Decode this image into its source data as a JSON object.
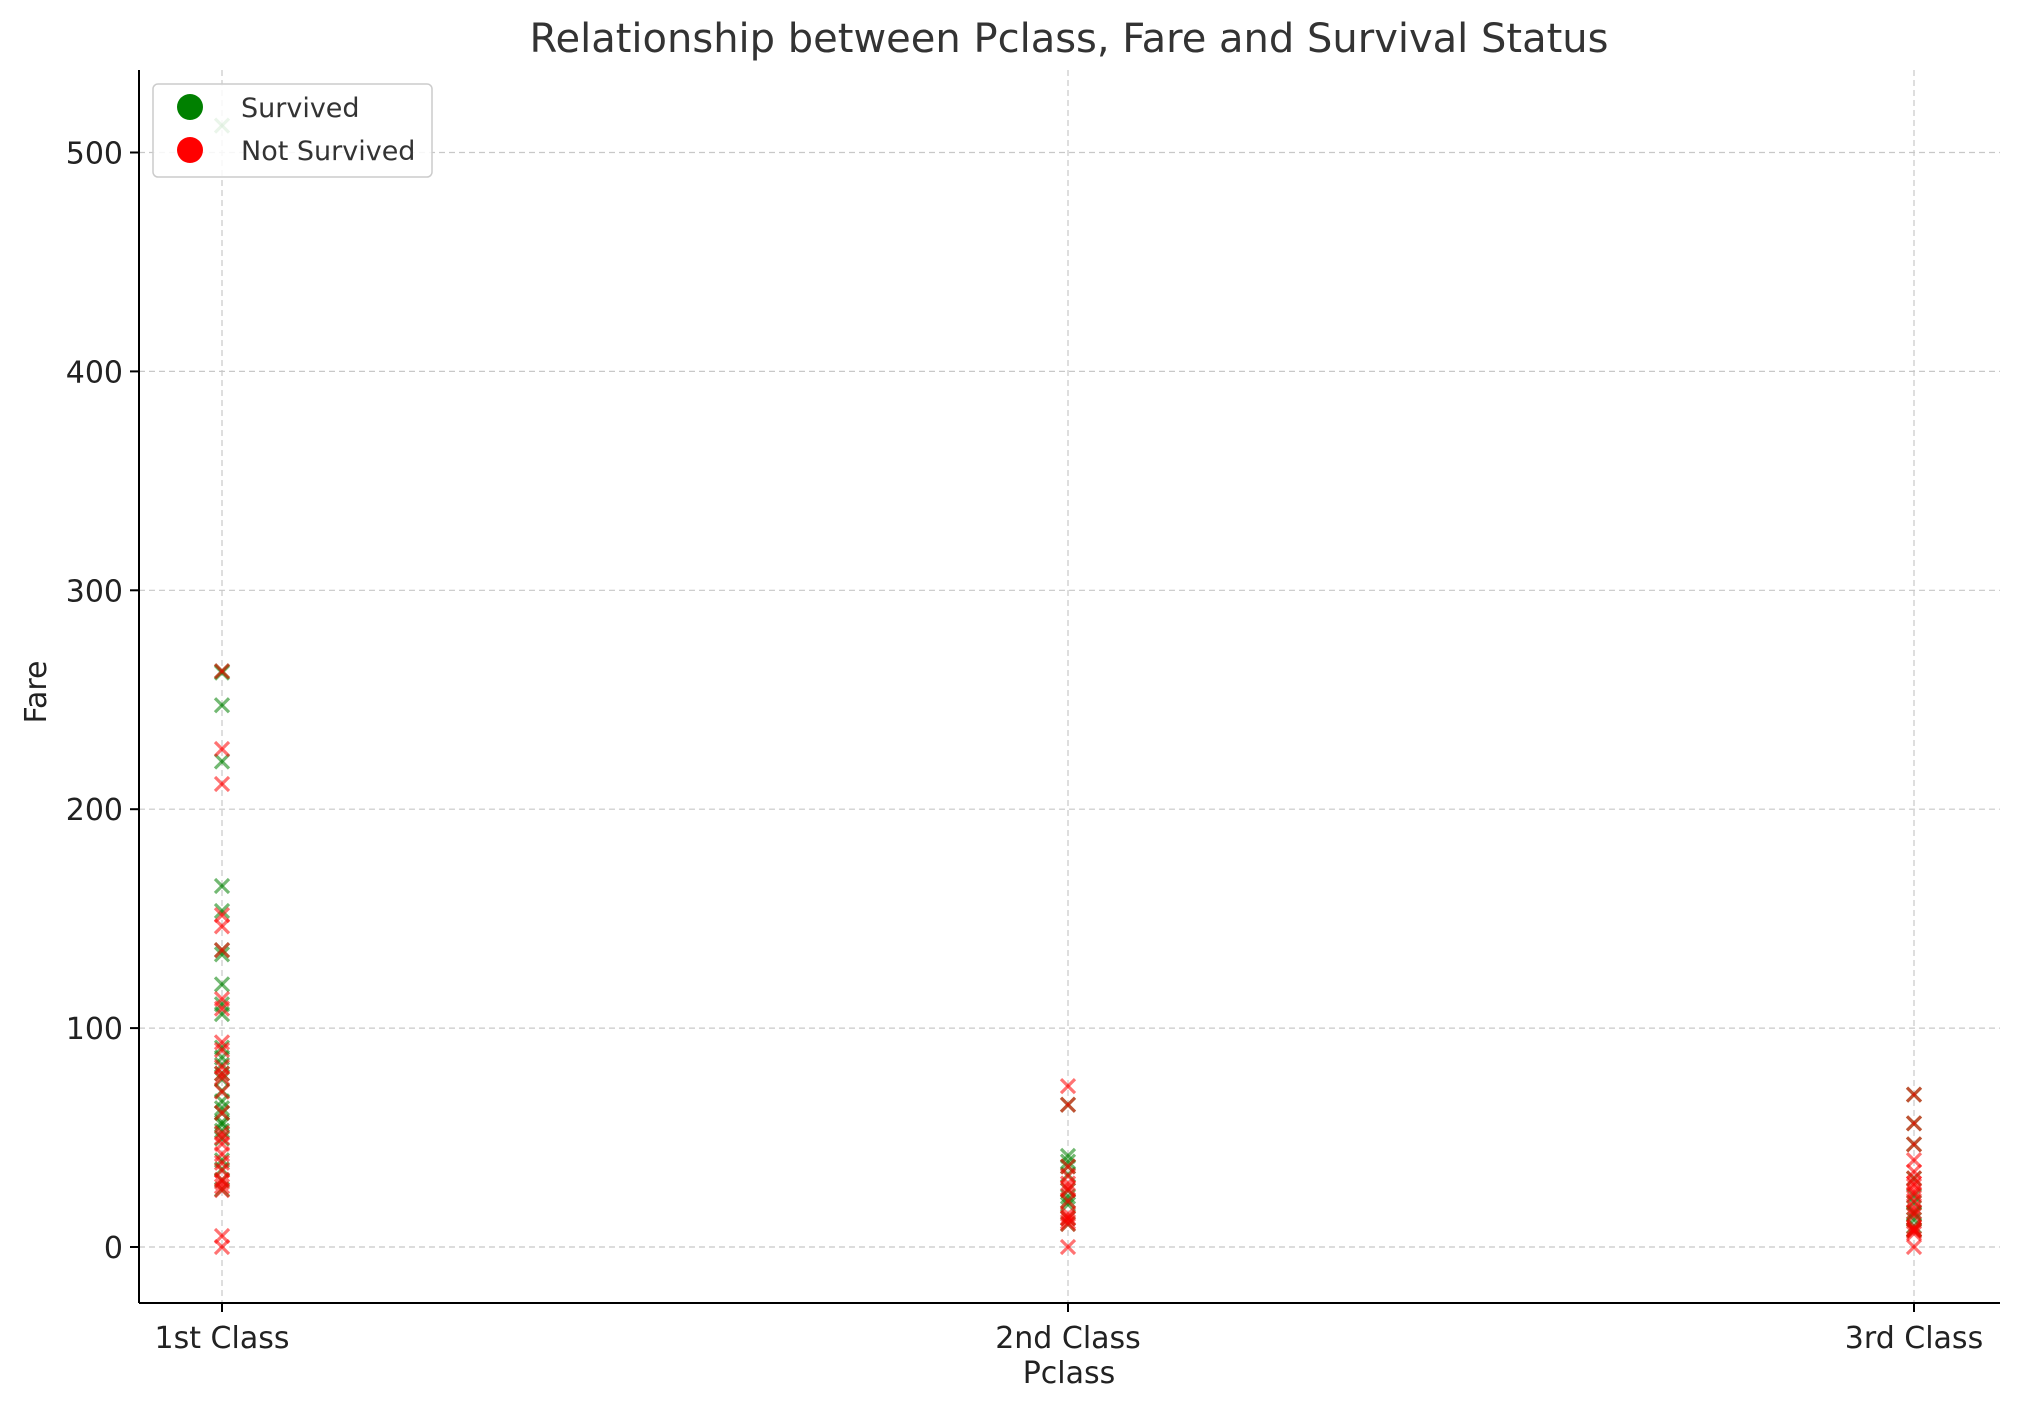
{
  "chart_data": {
    "type": "scatter",
    "title": "Relationship between Pclass, Fare and Survival Status",
    "xlabel": "Pclass",
    "ylabel": "Fare",
    "categories": [
      "1st Class",
      "2nd Class",
      "3rd Class"
    ],
    "ylim": [
      -25,
      540
    ],
    "yticks": [
      0,
      100,
      200,
      300,
      400,
      500
    ],
    "grid": true,
    "legend_position": "top-left",
    "marker": "x",
    "colors": {
      "Survived": "#008000",
      "Not Survived": "#ff0000"
    },
    "series": [
      {
        "name": "Survived",
        "points": [
          {
            "x": "1st Class",
            "y": 512.3
          },
          {
            "x": "1st Class",
            "y": 263.0
          },
          {
            "x": "1st Class",
            "y": 262.4
          },
          {
            "x": "1st Class",
            "y": 247.5
          },
          {
            "x": "1st Class",
            "y": 221.8
          },
          {
            "x": "1st Class",
            "y": 164.9
          },
          {
            "x": "1st Class",
            "y": 153.5
          },
          {
            "x": "1st Class",
            "y": 135.6
          },
          {
            "x": "1st Class",
            "y": 133.7
          },
          {
            "x": "1st Class",
            "y": 120.0
          },
          {
            "x": "1st Class",
            "y": 110.9
          },
          {
            "x": "1st Class",
            "y": 106.4
          },
          {
            "x": "1st Class",
            "y": 91.1
          },
          {
            "x": "1st Class",
            "y": 86.5
          },
          {
            "x": "1st Class",
            "y": 83.2
          },
          {
            "x": "1st Class",
            "y": 79.2
          },
          {
            "x": "1st Class",
            "y": 76.7
          },
          {
            "x": "1st Class",
            "y": 71.3
          },
          {
            "x": "1st Class",
            "y": 66.6
          },
          {
            "x": "1st Class",
            "y": 63.4
          },
          {
            "x": "1st Class",
            "y": 61.2
          },
          {
            "x": "1st Class",
            "y": 57.0
          },
          {
            "x": "1st Class",
            "y": 55.9
          },
          {
            "x": "1st Class",
            "y": 53.1
          },
          {
            "x": "1st Class",
            "y": 49.5
          },
          {
            "x": "1st Class",
            "y": 39.6
          },
          {
            "x": "1st Class",
            "y": 35.5
          },
          {
            "x": "1st Class",
            "y": 30.5
          },
          {
            "x": "1st Class",
            "y": 26.3
          },
          {
            "x": "2nd Class",
            "y": 65.0
          },
          {
            "x": "2nd Class",
            "y": 41.6
          },
          {
            "x": "2nd Class",
            "y": 39.0
          },
          {
            "x": "2nd Class",
            "y": 36.8
          },
          {
            "x": "2nd Class",
            "y": 33.0
          },
          {
            "x": "2nd Class",
            "y": 26.0
          },
          {
            "x": "2nd Class",
            "y": 23.0
          },
          {
            "x": "2nd Class",
            "y": 21.0
          },
          {
            "x": "2nd Class",
            "y": 19.5
          },
          {
            "x": "2nd Class",
            "y": 13.0
          },
          {
            "x": "2nd Class",
            "y": 10.5
          },
          {
            "x": "3rd Class",
            "y": 69.6
          },
          {
            "x": "3rd Class",
            "y": 56.5
          },
          {
            "x": "3rd Class",
            "y": 46.9
          },
          {
            "x": "3rd Class",
            "y": 31.3
          },
          {
            "x": "3rd Class",
            "y": 23.3
          },
          {
            "x": "3rd Class",
            "y": 20.2
          },
          {
            "x": "3rd Class",
            "y": 15.9
          },
          {
            "x": "3rd Class",
            "y": 15.2
          },
          {
            "x": "3rd Class",
            "y": 12.5
          },
          {
            "x": "3rd Class",
            "y": 9.5
          },
          {
            "x": "3rd Class",
            "y": 7.9
          },
          {
            "x": "3rd Class",
            "y": 7.7
          }
        ]
      },
      {
        "name": "Not Survived",
        "points": [
          {
            "x": "1st Class",
            "y": 263.0
          },
          {
            "x": "1st Class",
            "y": 227.5
          },
          {
            "x": "1st Class",
            "y": 211.5
          },
          {
            "x": "1st Class",
            "y": 151.6
          },
          {
            "x": "1st Class",
            "y": 146.5
          },
          {
            "x": "1st Class",
            "y": 135.6
          },
          {
            "x": "1st Class",
            "y": 113.3
          },
          {
            "x": "1st Class",
            "y": 108.9
          },
          {
            "x": "1st Class",
            "y": 93.5
          },
          {
            "x": "1st Class",
            "y": 90.0
          },
          {
            "x": "1st Class",
            "y": 82.2
          },
          {
            "x": "1st Class",
            "y": 79.2
          },
          {
            "x": "1st Class",
            "y": 77.3
          },
          {
            "x": "1st Class",
            "y": 71.0
          },
          {
            "x": "1st Class",
            "y": 61.3
          },
          {
            "x": "1st Class",
            "y": 52.0
          },
          {
            "x": "1st Class",
            "y": 50.0
          },
          {
            "x": "1st Class",
            "y": 47.1
          },
          {
            "x": "1st Class",
            "y": 42.4
          },
          {
            "x": "1st Class",
            "y": 38.5
          },
          {
            "x": "1st Class",
            "y": 35.0
          },
          {
            "x": "1st Class",
            "y": 30.7
          },
          {
            "x": "1st Class",
            "y": 29.7
          },
          {
            "x": "1st Class",
            "y": 27.7
          },
          {
            "x": "1st Class",
            "y": 26.0
          },
          {
            "x": "1st Class",
            "y": 5.0
          },
          {
            "x": "1st Class",
            "y": 0.0
          },
          {
            "x": "2nd Class",
            "y": 73.5
          },
          {
            "x": "2nd Class",
            "y": 65.0
          },
          {
            "x": "2nd Class",
            "y": 36.8
          },
          {
            "x": "2nd Class",
            "y": 32.5
          },
          {
            "x": "2nd Class",
            "y": 29.0
          },
          {
            "x": "2nd Class",
            "y": 27.0
          },
          {
            "x": "2nd Class",
            "y": 26.0
          },
          {
            "x": "2nd Class",
            "y": 21.0
          },
          {
            "x": "2nd Class",
            "y": 15.0
          },
          {
            "x": "2nd Class",
            "y": 13.5
          },
          {
            "x": "2nd Class",
            "y": 13.0
          },
          {
            "x": "2nd Class",
            "y": 11.5
          },
          {
            "x": "2nd Class",
            "y": 10.5
          },
          {
            "x": "2nd Class",
            "y": 0.0
          },
          {
            "x": "3rd Class",
            "y": 69.6
          },
          {
            "x": "3rd Class",
            "y": 56.5
          },
          {
            "x": "3rd Class",
            "y": 46.9
          },
          {
            "x": "3rd Class",
            "y": 39.7
          },
          {
            "x": "3rd Class",
            "y": 34.4
          },
          {
            "x": "3rd Class",
            "y": 31.4
          },
          {
            "x": "3rd Class",
            "y": 29.1
          },
          {
            "x": "3rd Class",
            "y": 27.9
          },
          {
            "x": "3rd Class",
            "y": 25.5
          },
          {
            "x": "3rd Class",
            "y": 24.2
          },
          {
            "x": "3rd Class",
            "y": 21.1
          },
          {
            "x": "3rd Class",
            "y": 18.0
          },
          {
            "x": "3rd Class",
            "y": 16.1
          },
          {
            "x": "3rd Class",
            "y": 14.5
          },
          {
            "x": "3rd Class",
            "y": 9.2
          },
          {
            "x": "3rd Class",
            "y": 8.1
          },
          {
            "x": "3rd Class",
            "y": 7.9
          },
          {
            "x": "3rd Class",
            "y": 7.2
          },
          {
            "x": "3rd Class",
            "y": 6.2
          },
          {
            "x": "3rd Class",
            "y": 0.0
          }
        ]
      }
    ]
  }
}
